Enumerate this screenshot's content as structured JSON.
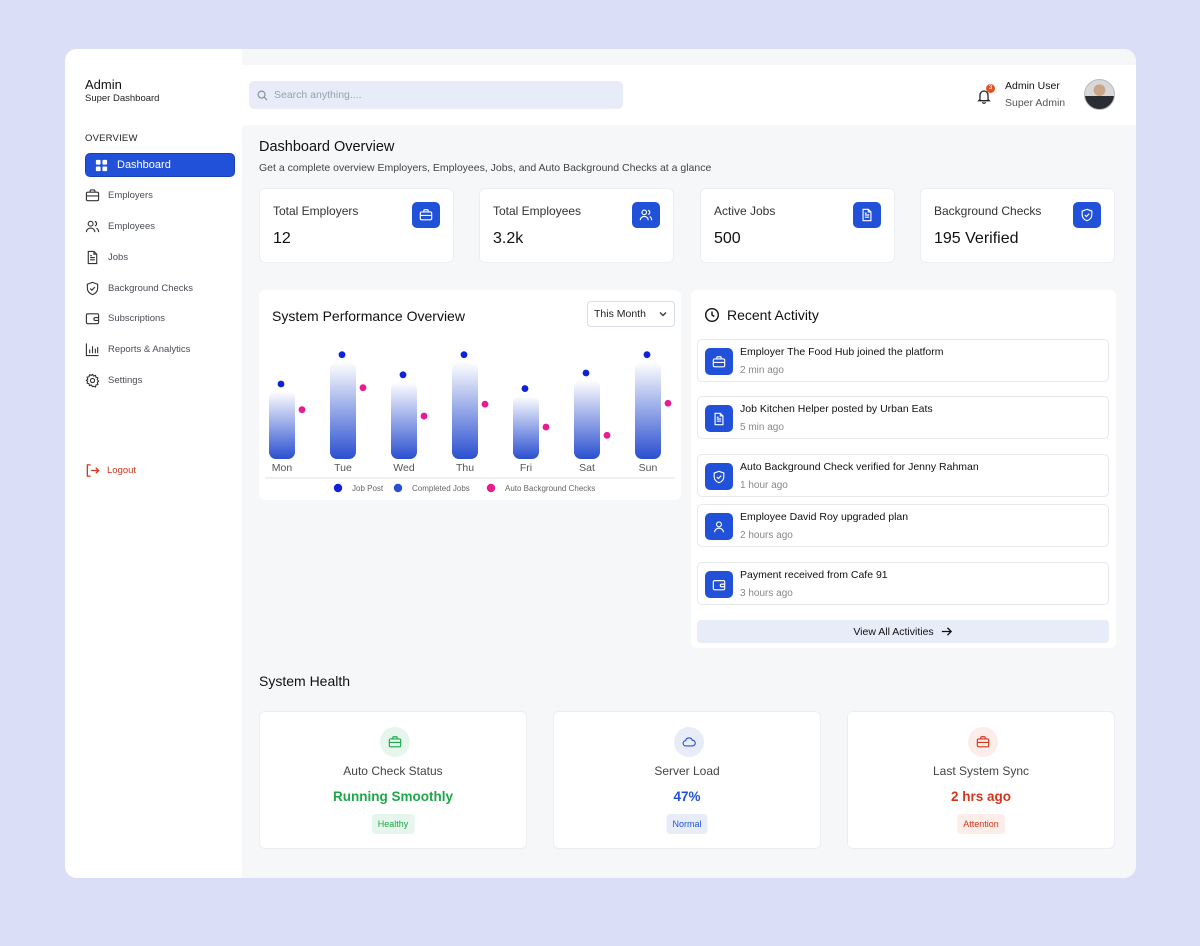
{
  "sidebar": {
    "brand_title": "Admin",
    "brand_sub": "Super Dashboard",
    "section": "OVERVIEW",
    "items": [
      {
        "label": "Dashboard",
        "icon": "grid-icon"
      },
      {
        "label": "Employers",
        "icon": "briefcase-icon"
      },
      {
        "label": "Employees",
        "icon": "users-icon"
      },
      {
        "label": "Jobs",
        "icon": "document-icon"
      },
      {
        "label": "Background Checks",
        "icon": "shield-check-icon"
      },
      {
        "label": "Subscriptions",
        "icon": "wallet-icon"
      },
      {
        "label": "Reports & Analytics",
        "icon": "bar-chart-icon"
      },
      {
        "label": "Settings",
        "icon": "gear-icon"
      }
    ],
    "logout": "Logout"
  },
  "header": {
    "search_placeholder": "Search anything....",
    "notification_count": "3",
    "user_name": "Admin User",
    "user_role": "Super Admin"
  },
  "main": {
    "title": "Dashboard Overview",
    "subtitle": "Get a complete overview Employers, Employees, Jobs, and Auto Background Checks at a glance",
    "stats": [
      {
        "label": "Total Employers",
        "value": "12",
        "icon": "briefcase-icon"
      },
      {
        "label": "Total Employees",
        "value": "3.2k",
        "icon": "users-icon"
      },
      {
        "label": "Active Jobs",
        "value": "500",
        "icon": "document-icon"
      },
      {
        "label": "Background Checks",
        "value": "195 Verified",
        "icon": "shield-check-icon"
      }
    ]
  },
  "chart_card": {
    "title": "System Performance Overview",
    "period": "This Month"
  },
  "chart_data": {
    "type": "bar",
    "categories": [
      "Mon",
      "Tue",
      "Wed",
      "Thu",
      "Fri",
      "Sat",
      "Sun"
    ],
    "series": [
      {
        "name": "Job Post",
        "values": [
          72,
          104,
          82,
          104,
          67,
          84,
          104
        ],
        "color": "#1022d9"
      },
      {
        "name": "Completed Jobs",
        "values": [
          64,
          96,
          74,
          96,
          59,
          76,
          96
        ],
        "color": "#2a4fd0"
      },
      {
        "name": "Auto Background Checks",
        "values": [
          44,
          68,
          37,
          50,
          25,
          16,
          51
        ],
        "color": "#e61c8f"
      }
    ],
    "ylim": [
      0,
      120
    ],
    "legend": "bottom",
    "grid": false
  },
  "activity": {
    "title": "Recent Activity",
    "items": [
      {
        "text": "Employer The Food Hub joined the platform",
        "time": "2 min ago",
        "icon": "briefcase-icon"
      },
      {
        "text": "Job Kitchen Helper posted by Urban Eats",
        "time": "5 min ago",
        "icon": "document-icon"
      },
      {
        "text": "Auto Background Check verified for Jenny Rahman",
        "time": "1 hour ago",
        "icon": "shield-check-icon"
      },
      {
        "text": "Employee David Roy upgraded plan",
        "time": "2 hours ago",
        "icon": "user-icon"
      },
      {
        "text": "Payment received from Cafe 91",
        "time": "3 hours ago",
        "icon": "wallet-icon"
      }
    ],
    "view_all": "View All Activities"
  },
  "health": {
    "title": "System Health",
    "cards": [
      {
        "label": "Auto Check Status",
        "value": "Running Smoothly",
        "badge": "Healthy",
        "color": "#1fa64a",
        "bg": "#e6f6ec",
        "icon": "briefcase-icon"
      },
      {
        "label": "Server Load",
        "value": "47%",
        "badge": "Normal",
        "color": "#2151d8",
        "bg": "#e8ecf8",
        "icon": "cloud-icon"
      },
      {
        "label": "Last System Sync",
        "value": "2 hrs ago",
        "badge": "Attention",
        "color": "#d2361c",
        "bg": "#fbeeea",
        "icon": "briefcase-icon"
      }
    ]
  }
}
